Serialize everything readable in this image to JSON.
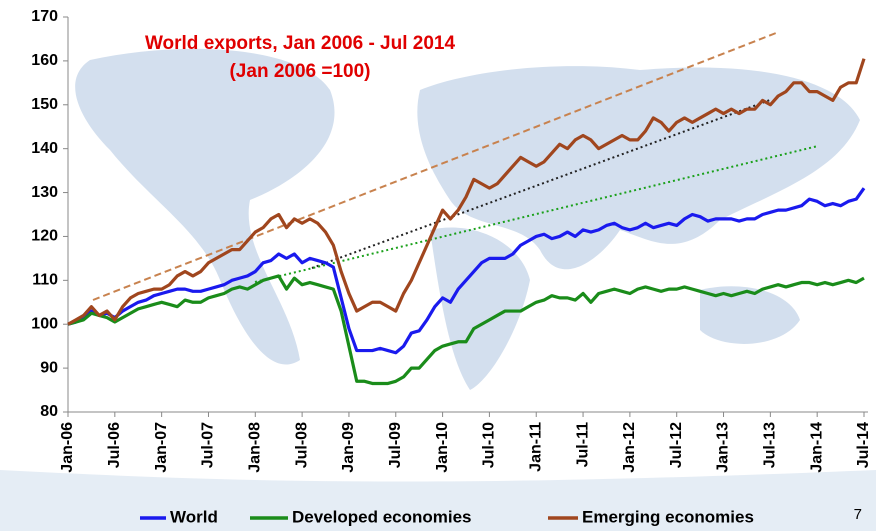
{
  "chart_data": {
    "type": "line",
    "title": "World exports, Jan 2006 - Jul 2014",
    "subtitle": "(Jan 2006 =100)",
    "page_number": "7",
    "categories": [
      "Jan-06",
      null,
      null,
      null,
      null,
      null,
      "Jul-06",
      null,
      null,
      null,
      null,
      null,
      "Jan-07",
      null,
      null,
      null,
      null,
      null,
      "Jul-07",
      null,
      null,
      null,
      null,
      null,
      "Jan-08",
      null,
      null,
      null,
      null,
      null,
      "Jul-08",
      null,
      null,
      null,
      null,
      null,
      "Jan-09",
      null,
      null,
      null,
      null,
      null,
      "Jul-09",
      null,
      null,
      null,
      null,
      null,
      "Jan-10",
      null,
      null,
      null,
      null,
      null,
      "Jul-10",
      null,
      null,
      null,
      null,
      null,
      "Jan-11",
      null,
      null,
      null,
      null,
      null,
      "Jul-11",
      null,
      null,
      null,
      null,
      null,
      "Jan-12",
      null,
      null,
      null,
      null,
      null,
      "Jul-12",
      null,
      null,
      null,
      null,
      null,
      "Jan-13",
      null,
      null,
      null,
      null,
      null,
      "Jul-13",
      null,
      null,
      null,
      null,
      null,
      "Jan-14",
      null,
      null,
      null,
      null,
      null,
      "Jul-14"
    ],
    "series": [
      {
        "name": "World",
        "color": "#1a1aee",
        "values": [
          100,
          100.5,
          101.5,
          103,
          102,
          102.5,
          101.5,
          103,
          104,
          105,
          105.5,
          106.5,
          107,
          107.5,
          108,
          108,
          107.5,
          107.5,
          108,
          108.5,
          109,
          110,
          110.5,
          111,
          112,
          114,
          114.5,
          116,
          115,
          116,
          114,
          115,
          114.5,
          114,
          113,
          106,
          99,
          94,
          94,
          94,
          94.5,
          94,
          93.5,
          95,
          98,
          98.5,
          101,
          104,
          106,
          105,
          108,
          110,
          112,
          114,
          115,
          115,
          115,
          116,
          118,
          119,
          120,
          120.5,
          119.5,
          120,
          121,
          120,
          121.5,
          121,
          121.5,
          122.5,
          123,
          122,
          121.5,
          122,
          123,
          122,
          122.5,
          123,
          122.5,
          124,
          125,
          124.5,
          123.5,
          124,
          124,
          124,
          123.5,
          124,
          124,
          125,
          125.5,
          126,
          126,
          126.5,
          127,
          128.5,
          128,
          127,
          127.5,
          127,
          128,
          128.5,
          131
        ]
      },
      {
        "name": "Developed economies",
        "color": "#1a8c1a",
        "values": [
          100,
          100.5,
          101,
          102.5,
          102,
          101.5,
          100.5,
          101.5,
          102.5,
          103.5,
          104,
          104.5,
          105,
          104.5,
          104,
          105.5,
          105,
          105,
          106,
          106.5,
          107,
          108,
          108.5,
          108,
          109,
          110,
          110.5,
          111,
          108,
          110.5,
          109,
          109.5,
          109,
          108.5,
          108,
          103,
          95,
          87,
          87,
          86.5,
          86.5,
          86.5,
          87,
          88,
          90,
          90,
          92,
          94,
          95,
          95.5,
          96,
          96,
          99,
          100,
          101,
          102,
          103,
          103,
          103,
          104,
          105,
          105.5,
          106.5,
          106,
          106,
          105.5,
          107,
          105,
          107,
          107.5,
          108,
          107.5,
          107,
          108,
          108.5,
          108,
          107.5,
          108,
          108,
          108.5,
          108,
          107.5,
          107,
          106.5,
          107,
          106.5,
          107,
          107.5,
          107,
          108,
          108.5,
          109,
          108.5,
          109,
          109.5,
          109.5,
          109,
          109.5,
          109,
          109.5,
          110,
          109.5,
          110.5
        ]
      },
      {
        "name": "Emerging economies",
        "color": "#a0461e",
        "values": [
          100,
          101,
          102,
          104,
          102,
          103,
          101,
          104,
          106,
          107,
          107.5,
          108,
          108,
          109,
          111,
          112,
          111,
          112,
          114,
          115,
          116,
          117,
          117,
          119,
          121,
          122,
          124,
          125,
          122,
          124,
          123,
          124,
          123,
          121,
          118,
          112,
          107,
          103,
          104,
          105,
          105,
          104,
          103,
          107,
          110,
          114,
          118,
          122,
          126,
          124,
          126,
          129,
          133,
          132,
          131,
          132,
          134,
          136,
          138,
          137,
          136,
          137,
          139,
          141,
          140,
          142,
          143,
          142,
          140,
          141,
          142,
          143,
          142,
          142,
          144,
          147,
          146,
          144,
          146,
          147,
          146,
          147,
          148,
          149,
          148,
          149,
          148,
          149,
          149,
          151,
          150,
          152,
          153,
          155,
          155,
          153,
          153,
          152,
          151,
          154,
          155,
          155,
          160.5
        ]
      }
    ],
    "ylim": [
      80,
      170
    ],
    "yticks": [
      80,
      90,
      100,
      110,
      120,
      130,
      140,
      150,
      160,
      170
    ],
    "grid": false,
    "legend": "bottom"
  }
}
